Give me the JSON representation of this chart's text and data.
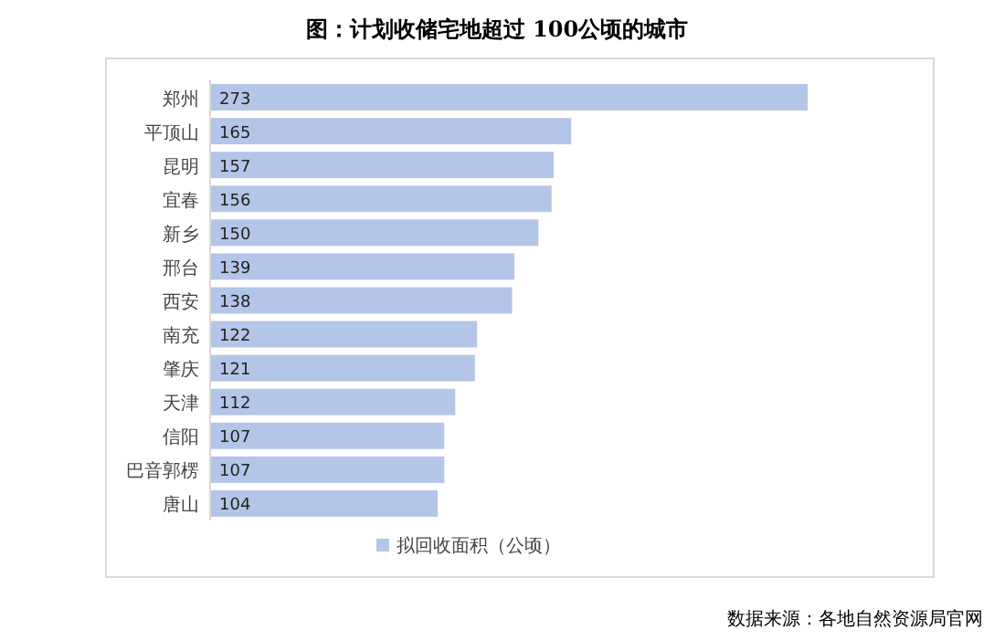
{
  "chart_data": {
    "type": "bar",
    "orientation": "horizontal",
    "title": "图：计划收储宅地超过 100公顷的城市",
    "categories": [
      "郑州",
      "平顶山",
      "昆明",
      "宜春",
      "新乡",
      "邢台",
      "西安",
      "南充",
      "肇庆",
      "天津",
      "信阳",
      "巴音郭楞",
      "唐山"
    ],
    "series": [
      {
        "name": "拟回收面积（公顷）",
        "color": "#b4c6e7",
        "values": [
          273,
          165,
          157,
          156,
          150,
          139,
          138,
          122,
          121,
          112,
          107,
          107,
          104
        ]
      }
    ],
    "data_labels": true,
    "legend": "bottom",
    "annotations": [
      "数据来源：各地自然资源局官网"
    ]
  }
}
